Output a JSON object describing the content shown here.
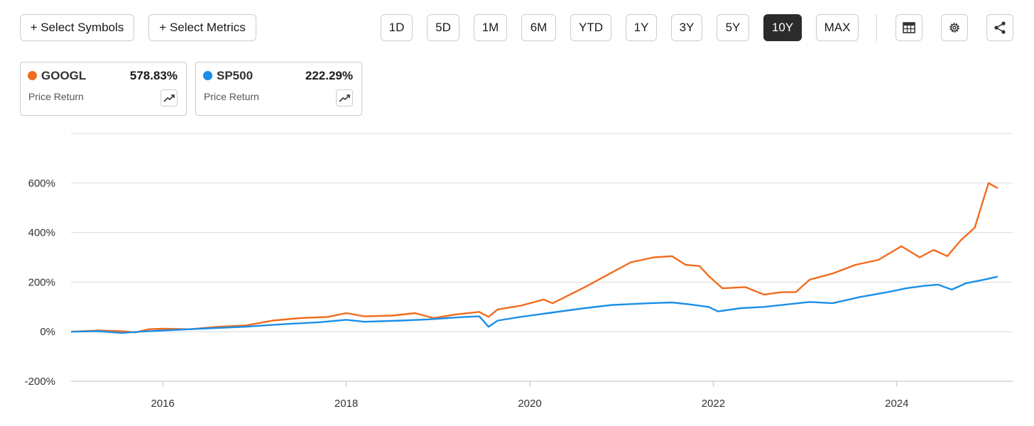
{
  "toolbar": {
    "select_symbols": "+ Select Symbols",
    "select_metrics": "+ Select Metrics",
    "ranges": [
      "1D",
      "5D",
      "1M",
      "6M",
      "YTD",
      "1Y",
      "3Y",
      "5Y",
      "10Y",
      "MAX"
    ],
    "active_range": "10Y",
    "icons": [
      "table-icon",
      "gear-icon",
      "share-icon"
    ]
  },
  "legend": [
    {
      "symbol": "GOOGL",
      "value": "578.83%",
      "metric": "Price Return",
      "color": "#f26b1d",
      "icon": "trend-icon"
    },
    {
      "symbol": "SP500",
      "value": "222.29%",
      "metric": "Price Return",
      "color": "#1a8fe8",
      "icon": "trend-icon"
    }
  ],
  "chart_data": {
    "type": "line",
    "title": "",
    "xlabel": "",
    "ylabel": "",
    "x_ticks": [
      "2016",
      "2018",
      "2020",
      "2022",
      "2024"
    ],
    "y_ticks": [
      "600%",
      "400%",
      "200%",
      "0%",
      "-200%"
    ],
    "ylim": [
      -200,
      800
    ],
    "xlim": [
      2015.0,
      2025.0
    ],
    "grid": "horizontal",
    "series": [
      {
        "name": "GOOGL",
        "color": "#f26b1d",
        "points": [
          [
            2015.0,
            0
          ],
          [
            2015.3,
            5
          ],
          [
            2015.55,
            2
          ],
          [
            2015.7,
            -3
          ],
          [
            2015.85,
            10
          ],
          [
            2016.0,
            12
          ],
          [
            2016.3,
            10
          ],
          [
            2016.6,
            20
          ],
          [
            2016.9,
            25
          ],
          [
            2017.2,
            45
          ],
          [
            2017.5,
            55
          ],
          [
            2017.8,
            60
          ],
          [
            2018.0,
            75
          ],
          [
            2018.2,
            62
          ],
          [
            2018.5,
            65
          ],
          [
            2018.75,
            75
          ],
          [
            2018.95,
            55
          ],
          [
            2019.2,
            70
          ],
          [
            2019.45,
            80
          ],
          [
            2019.55,
            60
          ],
          [
            2019.65,
            90
          ],
          [
            2019.9,
            105
          ],
          [
            2020.15,
            130
          ],
          [
            2020.25,
            115
          ],
          [
            2020.6,
            180
          ],
          [
            2020.9,
            240
          ],
          [
            2021.1,
            280
          ],
          [
            2021.35,
            300
          ],
          [
            2021.55,
            305
          ],
          [
            2021.7,
            270
          ],
          [
            2021.85,
            265
          ],
          [
            2021.95,
            225
          ],
          [
            2022.1,
            175
          ],
          [
            2022.35,
            180
          ],
          [
            2022.55,
            150
          ],
          [
            2022.75,
            160
          ],
          [
            2022.9,
            160
          ],
          [
            2023.05,
            210
          ],
          [
            2023.3,
            235
          ],
          [
            2023.55,
            270
          ],
          [
            2023.8,
            290
          ],
          [
            2024.05,
            345
          ],
          [
            2024.25,
            300
          ],
          [
            2024.4,
            330
          ],
          [
            2024.55,
            305
          ],
          [
            2024.7,
            370
          ],
          [
            2024.85,
            420
          ],
          [
            2024.95,
            540
          ],
          [
            2025.0,
            600
          ],
          [
            2025.1,
            578.83
          ]
        ]
      },
      {
        "name": "SP500",
        "color": "#1a8fe8",
        "points": [
          [
            2015.0,
            0
          ],
          [
            2015.3,
            2
          ],
          [
            2015.55,
            -5
          ],
          [
            2015.75,
            0
          ],
          [
            2016.0,
            5
          ],
          [
            2016.4,
            12
          ],
          [
            2016.9,
            20
          ],
          [
            2017.3,
            30
          ],
          [
            2017.7,
            38
          ],
          [
            2018.0,
            48
          ],
          [
            2018.2,
            40
          ],
          [
            2018.6,
            45
          ],
          [
            2018.9,
            50
          ],
          [
            2019.1,
            55
          ],
          [
            2019.3,
            60
          ],
          [
            2019.45,
            62
          ],
          [
            2019.55,
            20
          ],
          [
            2019.65,
            45
          ],
          [
            2019.9,
            60
          ],
          [
            2020.2,
            75
          ],
          [
            2020.6,
            95
          ],
          [
            2020.9,
            108
          ],
          [
            2021.3,
            115
          ],
          [
            2021.55,
            118
          ],
          [
            2021.75,
            110
          ],
          [
            2021.95,
            100
          ],
          [
            2022.05,
            82
          ],
          [
            2022.3,
            95
          ],
          [
            2022.55,
            100
          ],
          [
            2022.8,
            110
          ],
          [
            2023.05,
            120
          ],
          [
            2023.3,
            115
          ],
          [
            2023.6,
            140
          ],
          [
            2023.9,
            160
          ],
          [
            2024.1,
            175
          ],
          [
            2024.3,
            185
          ],
          [
            2024.45,
            190
          ],
          [
            2024.6,
            170
          ],
          [
            2024.75,
            195
          ],
          [
            2024.95,
            210
          ],
          [
            2025.1,
            222.29
          ]
        ]
      }
    ]
  }
}
